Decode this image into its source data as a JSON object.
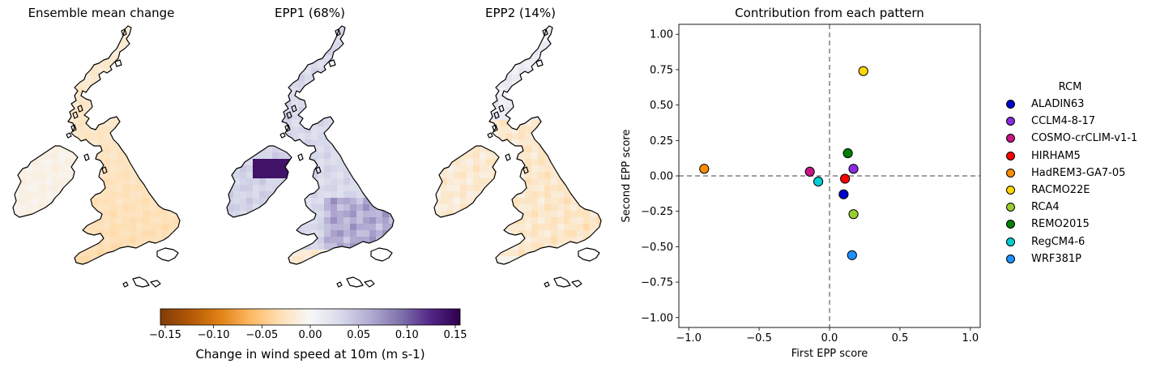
{
  "maps": [
    {
      "title": "Ensemble mean change",
      "field": "mean"
    },
    {
      "title": "EPP1 (68%)",
      "field": "epp1"
    },
    {
      "title": "EPP2 (14%)",
      "field": "epp2"
    }
  ],
  "colorbar": {
    "label": "Change in wind speed at 10m (m s-1)",
    "ticks": [
      "−0.15",
      "−0.10",
      "−0.05",
      "0.00",
      "0.05",
      "0.10",
      "0.15"
    ],
    "range": [
      -0.155,
      0.155
    ],
    "colormap": "PuOr (brown-orange to purple)",
    "colors": [
      "#7f3b08",
      "#b35806",
      "#e08214",
      "#fdb863",
      "#fee0b6",
      "#f7f7f7",
      "#d8daeb",
      "#b2abd2",
      "#8073ac",
      "#542788",
      "#2d004b"
    ]
  },
  "chart_data": {
    "type": "scatter",
    "title": "Contribution from each pattern",
    "xlabel": "First EPP score",
    "ylabel": "Second EPP score",
    "xlim": [
      -1.07,
      1.07
    ],
    "ylim": [
      -1.07,
      1.07
    ],
    "xticks": [
      "−1.0",
      "−0.5",
      "0.0",
      "0.5",
      "1.0"
    ],
    "yticks": [
      "1.00",
      "0.75",
      "0.50",
      "0.25",
      "0.00",
      "−0.25",
      "−0.50",
      "−0.75",
      "−1.00"
    ],
    "reference_lines": {
      "x": 0,
      "y": 0,
      "style": "dashed",
      "color": "#808080"
    },
    "legend_title": "RCM",
    "legend_position": "right, outside plot",
    "series": [
      {
        "name": "ALADIN63",
        "color": "#0000cd",
        "x": 0.1,
        "y": -0.13
      },
      {
        "name": "CCLM4-8-17",
        "color": "#8a2be2",
        "x": 0.17,
        "y": 0.05
      },
      {
        "name": "COSMO-crCLIM-v1-1",
        "color": "#c71585",
        "x": -0.14,
        "y": 0.03
      },
      {
        "name": "HIRHAM5",
        "color": "#ff0000",
        "x": 0.11,
        "y": -0.02
      },
      {
        "name": "HadREM3-GA7-05",
        "color": "#ff8c00",
        "x": -0.89,
        "y": 0.05
      },
      {
        "name": "RACMO22E",
        "color": "#ffd700",
        "x": 0.24,
        "y": 0.74
      },
      {
        "name": "RCA4",
        "color": "#9acd32",
        "x": 0.17,
        "y": -0.27
      },
      {
        "name": "REMO2015",
        "color": "#008000",
        "x": 0.13,
        "y": 0.16
      },
      {
        "name": "RegCM4-6",
        "color": "#00ced1",
        "x": -0.08,
        "y": -0.04
      },
      {
        "name": "WRF381P",
        "color": "#1e90ff",
        "x": 0.16,
        "y": -0.56
      }
    ]
  }
}
